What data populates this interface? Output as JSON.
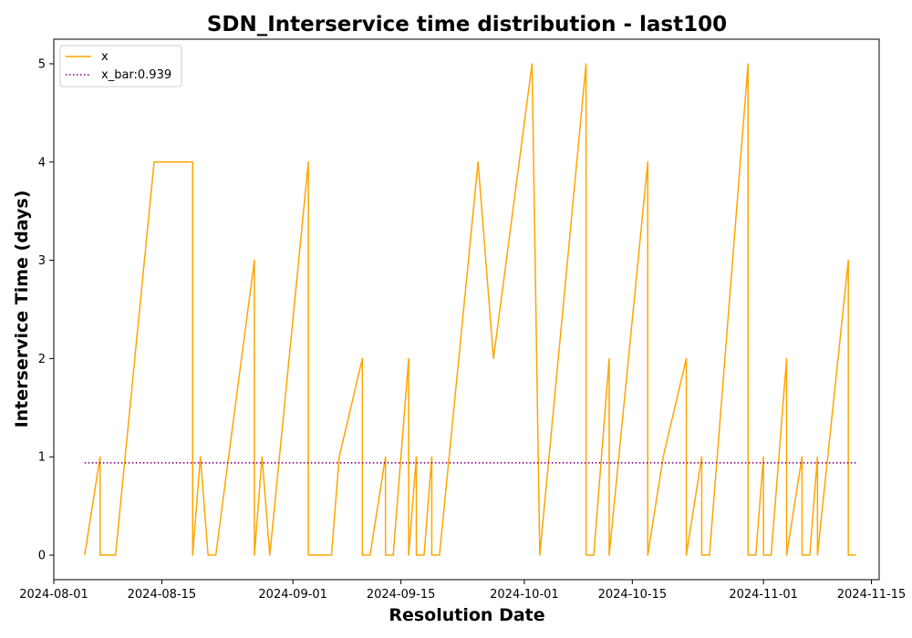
{
  "chart_data": {
    "type": "line",
    "title": "SDN_Interservice time distribution - last100",
    "xlabel": "Resolution Date",
    "ylabel": "Interservice Time (days)",
    "xlim": [
      "2024-08-01",
      "2024-11-16"
    ],
    "ylim": [
      -0.25,
      5.25
    ],
    "xticks": [
      "2024-08-01",
      "2024-08-15",
      "2024-09-01",
      "2024-09-15",
      "2024-10-01",
      "2024-10-15",
      "2024-11-01",
      "2024-11-15"
    ],
    "yticks": [
      0,
      1,
      2,
      3,
      4,
      5
    ],
    "grid": false,
    "legend": {
      "placement": "top-left"
    },
    "series": [
      {
        "name": "x",
        "style": "solid",
        "color": "#FFA500",
        "points": [
          {
            "x": "2024-08-05",
            "y": 0
          },
          {
            "x": "2024-08-07",
            "y": 1
          },
          {
            "x": "2024-08-07",
            "y": 0
          },
          {
            "x": "2024-08-09",
            "y": 0
          },
          {
            "x": "2024-08-14",
            "y": 4
          },
          {
            "x": "2024-08-19",
            "y": 4
          },
          {
            "x": "2024-08-19",
            "y": 0
          },
          {
            "x": "2024-08-20",
            "y": 1
          },
          {
            "x": "2024-08-21",
            "y": 0
          },
          {
            "x": "2024-08-22",
            "y": 0
          },
          {
            "x": "2024-08-27",
            "y": 3
          },
          {
            "x": "2024-08-27",
            "y": 0
          },
          {
            "x": "2024-08-28",
            "y": 1
          },
          {
            "x": "2024-08-29",
            "y": 0
          },
          {
            "x": "2024-09-03",
            "y": 4
          },
          {
            "x": "2024-09-03",
            "y": 0
          },
          {
            "x": "2024-09-06",
            "y": 0
          },
          {
            "x": "2024-09-07",
            "y": 1
          },
          {
            "x": "2024-09-10",
            "y": 2
          },
          {
            "x": "2024-09-10",
            "y": 0
          },
          {
            "x": "2024-09-11",
            "y": 0
          },
          {
            "x": "2024-09-13",
            "y": 1
          },
          {
            "x": "2024-09-13",
            "y": 0
          },
          {
            "x": "2024-09-14",
            "y": 0
          },
          {
            "x": "2024-09-16",
            "y": 2
          },
          {
            "x": "2024-09-16",
            "y": 0
          },
          {
            "x": "2024-09-17",
            "y": 1
          },
          {
            "x": "2024-09-17",
            "y": 0
          },
          {
            "x": "2024-09-18",
            "y": 0
          },
          {
            "x": "2024-09-19",
            "y": 1
          },
          {
            "x": "2024-09-19",
            "y": 0
          },
          {
            "x": "2024-09-20",
            "y": 0
          },
          {
            "x": "2024-09-25",
            "y": 4
          },
          {
            "x": "2024-09-27",
            "y": 2
          },
          {
            "x": "2024-10-02",
            "y": 5
          },
          {
            "x": "2024-10-03",
            "y": 0
          },
          {
            "x": "2024-10-09",
            "y": 5
          },
          {
            "x": "2024-10-09",
            "y": 0
          },
          {
            "x": "2024-10-10",
            "y": 0
          },
          {
            "x": "2024-10-12",
            "y": 2
          },
          {
            "x": "2024-10-12",
            "y": 0
          },
          {
            "x": "2024-10-17",
            "y": 4
          },
          {
            "x": "2024-10-17",
            "y": 0
          },
          {
            "x": "2024-10-19",
            "y": 1
          },
          {
            "x": "2024-10-22",
            "y": 2
          },
          {
            "x": "2024-10-22",
            "y": 0
          },
          {
            "x": "2024-10-24",
            "y": 1
          },
          {
            "x": "2024-10-24",
            "y": 0
          },
          {
            "x": "2024-10-25",
            "y": 0
          },
          {
            "x": "2024-10-30",
            "y": 5
          },
          {
            "x": "2024-10-30",
            "y": 0
          },
          {
            "x": "2024-10-31",
            "y": 0
          },
          {
            "x": "2024-11-01",
            "y": 1
          },
          {
            "x": "2024-11-01",
            "y": 0
          },
          {
            "x": "2024-11-02",
            "y": 0
          },
          {
            "x": "2024-11-04",
            "y": 2
          },
          {
            "x": "2024-11-04",
            "y": 0
          },
          {
            "x": "2024-11-06",
            "y": 1
          },
          {
            "x": "2024-11-06",
            "y": 0
          },
          {
            "x": "2024-11-07",
            "y": 0
          },
          {
            "x": "2024-11-08",
            "y": 1
          },
          {
            "x": "2024-11-08",
            "y": 0
          },
          {
            "x": "2024-11-12",
            "y": 3
          },
          {
            "x": "2024-11-12",
            "y": 0
          },
          {
            "x": "2024-11-13",
            "y": 0
          }
        ]
      },
      {
        "name": "x_bar:0.939",
        "style": "dotted",
        "color": "#800080",
        "points": [
          {
            "x": "2024-08-05",
            "y": 0.939
          },
          {
            "x": "2024-11-13",
            "y": 0.939
          }
        ]
      }
    ]
  }
}
